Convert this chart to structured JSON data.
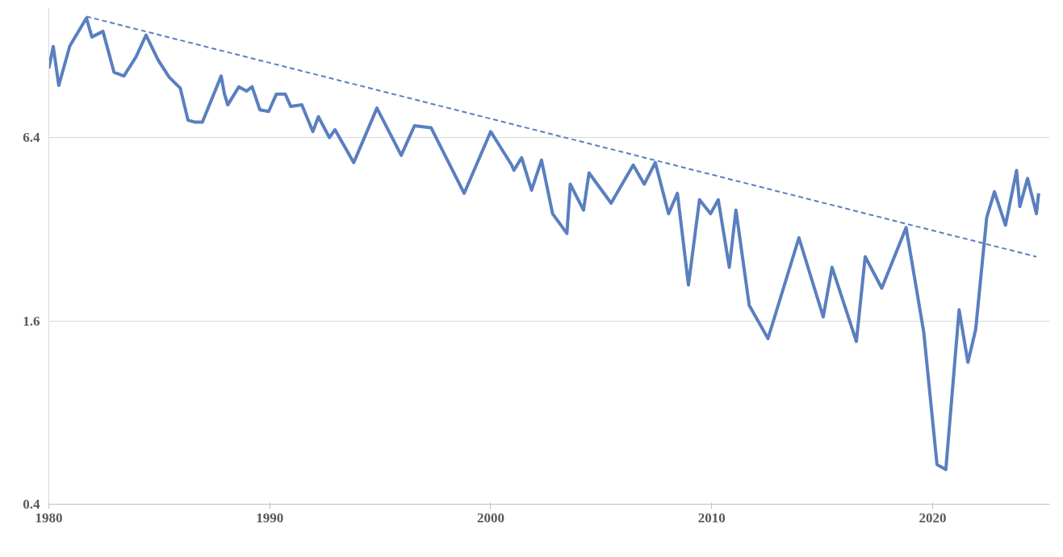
{
  "chart_data": {
    "type": "line",
    "log": "y",
    "grid": "y",
    "marker": "none",
    "xlim": [
      1980,
      2025.3
    ],
    "xticks": [
      1980,
      1990,
      2000,
      2010,
      2020
    ],
    "ylim": [
      0.4,
      17
    ],
    "yticks": [
      0.4,
      1.6,
      6.4
    ],
    "series": [
      {
        "color": "#5a7fbf",
        "line_style": "solid",
        "x": [
          1980.0,
          1980.2,
          1980.45,
          1980.95,
          1981.7,
          1981.95,
          1982.45,
          1982.95,
          1983.4,
          1983.95,
          1984.4,
          1984.95,
          1985.45,
          1985.95,
          1986.3,
          1986.6,
          1986.95,
          1987.8,
          1987.95,
          1988.1,
          1988.6,
          1988.95,
          1989.2,
          1989.55,
          1989.95,
          1990.3,
          1990.7,
          1990.95,
          1991.45,
          1991.95,
          1992.2,
          1992.7,
          1992.95,
          1993.8,
          1994.85,
          1995.95,
          1996.55,
          1997.3,
          1998.8,
          2000.0,
          2000.95,
          2001.05,
          2001.4,
          2001.85,
          2002.3,
          2002.8,
          2003.45,
          2003.6,
          2004.2,
          2004.45,
          2005.45,
          2006.45,
          2006.95,
          2007.45,
          2008.05,
          2008.45,
          2008.95,
          2009.45,
          2009.95,
          2010.3,
          2010.8,
          2011.1,
          2011.7,
          2012.55,
          2013.95,
          2015.05,
          2015.45,
          2016.55,
          2016.95,
          2017.7,
          2018.8,
          2019.6,
          2020.2,
          2020.6,
          2021.2,
          2021.6,
          2021.95,
          2022.45,
          2022.8,
          2023.3,
          2023.8,
          2023.95,
          2024.3,
          2024.7,
          2024.8
        ],
        "values": [
          10.8,
          12.75,
          9.5,
          12.8,
          15.8,
          13.7,
          14.3,
          10.5,
          10.2,
          11.8,
          13.9,
          11.5,
          10.1,
          9.3,
          7.3,
          7.2,
          7.2,
          10.2,
          8.9,
          8.2,
          9.4,
          9.1,
          9.4,
          7.9,
          7.8,
          8.9,
          8.9,
          8.1,
          8.2,
          6.7,
          7.5,
          6.4,
          6.8,
          5.3,
          8.0,
          5.6,
          7.0,
          6.9,
          4.2,
          6.7,
          5.2,
          5.0,
          5.5,
          4.3,
          5.4,
          3.6,
          3.1,
          4.5,
          3.7,
          4.9,
          3.9,
          5.2,
          4.5,
          5.3,
          3.6,
          4.2,
          2.1,
          4.0,
          3.6,
          4.0,
          2.4,
          3.7,
          1.8,
          1.4,
          3.0,
          1.65,
          2.4,
          1.37,
          2.6,
          2.05,
          3.24,
          1.47,
          0.54,
          0.52,
          1.74,
          1.17,
          1.5,
          3.5,
          4.25,
          3.3,
          4.99,
          3.8,
          4.7,
          3.6,
          4.2
        ]
      },
      {
        "color": "#5a7fbf",
        "line_style": "dashed",
        "x": [
          1981.7,
          2024.7
        ],
        "values": [
          16.0,
          2.6
        ]
      }
    ]
  }
}
